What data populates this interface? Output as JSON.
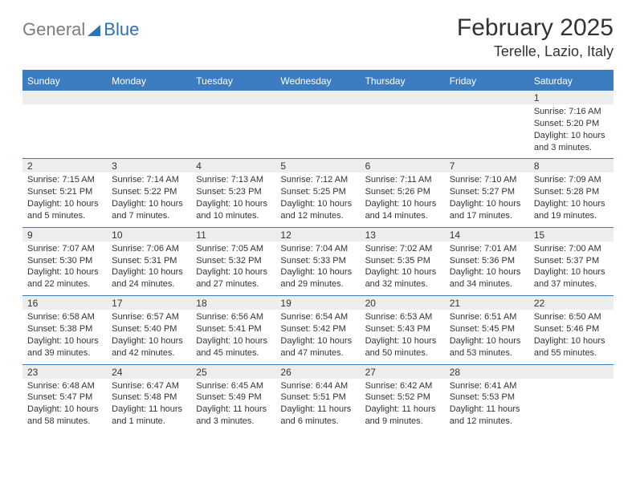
{
  "logo": {
    "part1": "General",
    "part2": "Blue"
  },
  "title": "February 2025",
  "location": "Terelle, Lazio, Italy",
  "colors": {
    "accent": "#3c7dc1",
    "grey_band": "#ededed",
    "text": "#333333",
    "logo_grey": "#7d7d7d"
  },
  "weekdays": [
    "Sunday",
    "Monday",
    "Tuesday",
    "Wednesday",
    "Thursday",
    "Friday",
    "Saturday"
  ],
  "weeks": [
    [
      {
        "n": "",
        "lines": []
      },
      {
        "n": "",
        "lines": []
      },
      {
        "n": "",
        "lines": []
      },
      {
        "n": "",
        "lines": []
      },
      {
        "n": "",
        "lines": []
      },
      {
        "n": "",
        "lines": []
      },
      {
        "n": "1",
        "lines": [
          "Sunrise: 7:16 AM",
          "Sunset: 5:20 PM",
          "Daylight: 10 hours and 3 minutes."
        ]
      }
    ],
    [
      {
        "n": "2",
        "lines": [
          "Sunrise: 7:15 AM",
          "Sunset: 5:21 PM",
          "Daylight: 10 hours and 5 minutes."
        ]
      },
      {
        "n": "3",
        "lines": [
          "Sunrise: 7:14 AM",
          "Sunset: 5:22 PM",
          "Daylight: 10 hours and 7 minutes."
        ]
      },
      {
        "n": "4",
        "lines": [
          "Sunrise: 7:13 AM",
          "Sunset: 5:23 PM",
          "Daylight: 10 hours and 10 minutes."
        ]
      },
      {
        "n": "5",
        "lines": [
          "Sunrise: 7:12 AM",
          "Sunset: 5:25 PM",
          "Daylight: 10 hours and 12 minutes."
        ]
      },
      {
        "n": "6",
        "lines": [
          "Sunrise: 7:11 AM",
          "Sunset: 5:26 PM",
          "Daylight: 10 hours and 14 minutes."
        ]
      },
      {
        "n": "7",
        "lines": [
          "Sunrise: 7:10 AM",
          "Sunset: 5:27 PM",
          "Daylight: 10 hours and 17 minutes."
        ]
      },
      {
        "n": "8",
        "lines": [
          "Sunrise: 7:09 AM",
          "Sunset: 5:28 PM",
          "Daylight: 10 hours and 19 minutes."
        ]
      }
    ],
    [
      {
        "n": "9",
        "lines": [
          "Sunrise: 7:07 AM",
          "Sunset: 5:30 PM",
          "Daylight: 10 hours and 22 minutes."
        ]
      },
      {
        "n": "10",
        "lines": [
          "Sunrise: 7:06 AM",
          "Sunset: 5:31 PM",
          "Daylight: 10 hours and 24 minutes."
        ]
      },
      {
        "n": "11",
        "lines": [
          "Sunrise: 7:05 AM",
          "Sunset: 5:32 PM",
          "Daylight: 10 hours and 27 minutes."
        ]
      },
      {
        "n": "12",
        "lines": [
          "Sunrise: 7:04 AM",
          "Sunset: 5:33 PM",
          "Daylight: 10 hours and 29 minutes."
        ]
      },
      {
        "n": "13",
        "lines": [
          "Sunrise: 7:02 AM",
          "Sunset: 5:35 PM",
          "Daylight: 10 hours and 32 minutes."
        ]
      },
      {
        "n": "14",
        "lines": [
          "Sunrise: 7:01 AM",
          "Sunset: 5:36 PM",
          "Daylight: 10 hours and 34 minutes."
        ]
      },
      {
        "n": "15",
        "lines": [
          "Sunrise: 7:00 AM",
          "Sunset: 5:37 PM",
          "Daylight: 10 hours and 37 minutes."
        ]
      }
    ],
    [
      {
        "n": "16",
        "lines": [
          "Sunrise: 6:58 AM",
          "Sunset: 5:38 PM",
          "Daylight: 10 hours and 39 minutes."
        ]
      },
      {
        "n": "17",
        "lines": [
          "Sunrise: 6:57 AM",
          "Sunset: 5:40 PM",
          "Daylight: 10 hours and 42 minutes."
        ]
      },
      {
        "n": "18",
        "lines": [
          "Sunrise: 6:56 AM",
          "Sunset: 5:41 PM",
          "Daylight: 10 hours and 45 minutes."
        ]
      },
      {
        "n": "19",
        "lines": [
          "Sunrise: 6:54 AM",
          "Sunset: 5:42 PM",
          "Daylight: 10 hours and 47 minutes."
        ]
      },
      {
        "n": "20",
        "lines": [
          "Sunrise: 6:53 AM",
          "Sunset: 5:43 PM",
          "Daylight: 10 hours and 50 minutes."
        ]
      },
      {
        "n": "21",
        "lines": [
          "Sunrise: 6:51 AM",
          "Sunset: 5:45 PM",
          "Daylight: 10 hours and 53 minutes."
        ]
      },
      {
        "n": "22",
        "lines": [
          "Sunrise: 6:50 AM",
          "Sunset: 5:46 PM",
          "Daylight: 10 hours and 55 minutes."
        ]
      }
    ],
    [
      {
        "n": "23",
        "lines": [
          "Sunrise: 6:48 AM",
          "Sunset: 5:47 PM",
          "Daylight: 10 hours and 58 minutes."
        ]
      },
      {
        "n": "24",
        "lines": [
          "Sunrise: 6:47 AM",
          "Sunset: 5:48 PM",
          "Daylight: 11 hours and 1 minute."
        ]
      },
      {
        "n": "25",
        "lines": [
          "Sunrise: 6:45 AM",
          "Sunset: 5:49 PM",
          "Daylight: 11 hours and 3 minutes."
        ]
      },
      {
        "n": "26",
        "lines": [
          "Sunrise: 6:44 AM",
          "Sunset: 5:51 PM",
          "Daylight: 11 hours and 6 minutes."
        ]
      },
      {
        "n": "27",
        "lines": [
          "Sunrise: 6:42 AM",
          "Sunset: 5:52 PM",
          "Daylight: 11 hours and 9 minutes."
        ]
      },
      {
        "n": "28",
        "lines": [
          "Sunrise: 6:41 AM",
          "Sunset: 5:53 PM",
          "Daylight: 11 hours and 12 minutes."
        ]
      },
      {
        "n": "",
        "lines": []
      }
    ]
  ]
}
